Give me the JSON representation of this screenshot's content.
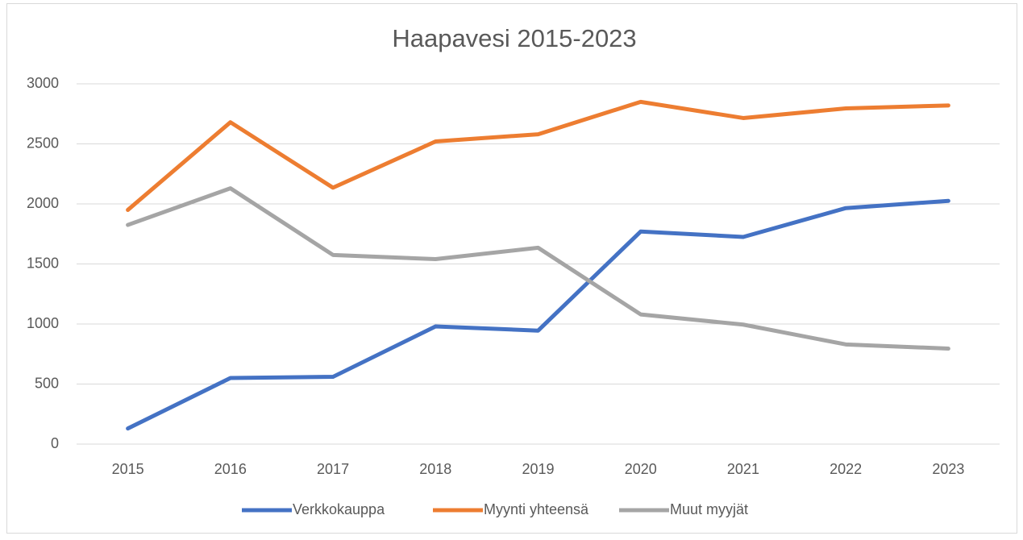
{
  "chart_data": {
    "type": "line",
    "title": "Haapavesi 2015-2023",
    "categories": [
      "2015",
      "2016",
      "2017",
      "2018",
      "2019",
      "2020",
      "2021",
      "2022",
      "2023"
    ],
    "series": [
      {
        "name": "Verkkokauppa",
        "color": "#4472c4",
        "values": [
          130,
          550,
          560,
          980,
          945,
          1770,
          1725,
          1965,
          2025
        ]
      },
      {
        "name": "Myynti yhteensä",
        "color": "#ed7d31",
        "values": [
          1950,
          2680,
          2135,
          2520,
          2580,
          2850,
          2715,
          2795,
          2820
        ]
      },
      {
        "name": "Muut myyjät",
        "color": "#a5a5a5",
        "values": [
          1825,
          2130,
          1575,
          1540,
          1635,
          1080,
          995,
          830,
          795
        ]
      }
    ],
    "ylim": [
      0,
      3000
    ],
    "yticks": [
      0,
      500,
      1000,
      1500,
      2000,
      2500,
      3000
    ],
    "grid": true,
    "legend": "bottom"
  }
}
